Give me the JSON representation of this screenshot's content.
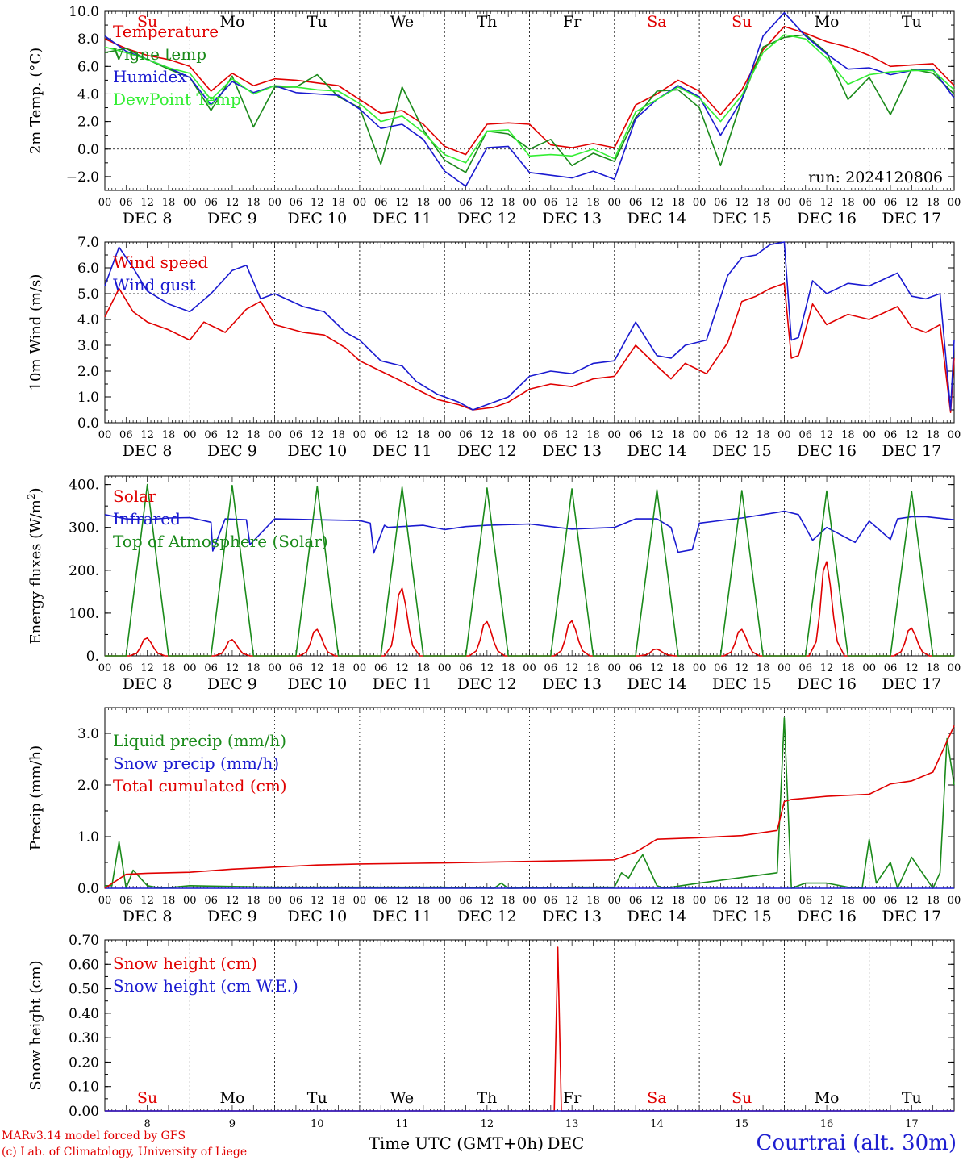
{
  "colors": {
    "red": "#e00000",
    "green": "#1a8a1a",
    "blue": "#1a1ad0",
    "lightgreen": "#33ee33"
  },
  "day_labels": [
    "Su",
    "Mo",
    "Tu",
    "We",
    "Th",
    "Fr",
    "Sa",
    "Su",
    "Mo",
    "Tu"
  ],
  "day_label_colors": [
    "red",
    "black",
    "black",
    "black",
    "black",
    "black",
    "red",
    "red",
    "black",
    "black"
  ],
  "hour_labels": [
    "00",
    "06",
    "12",
    "18"
  ],
  "end_hour_label": "00",
  "date_labels": [
    "DEC  8",
    "DEC  9",
    "DEC 10",
    "DEC 11",
    "DEC 12",
    "DEC 13",
    "DEC 14",
    "DEC 15",
    "DEC 16",
    "DEC 17"
  ],
  "day_numbers": [
    "8",
    "9",
    "10",
    "11",
    "12",
    "13",
    "14",
    "15",
    "16",
    "17"
  ],
  "bottom_axis_label": "Time UTC (GMT+0h)",
  "bottom_month": "DEC",
  "credits": [
    "MARv3.14 model forced by GFS",
    "(c) Lab. of Climatology, University of Liege"
  ],
  "station": "Courtrai (alt. 30m)",
  "chart_data": [
    {
      "type": "line",
      "ylabel": "2m Temp. (°C)",
      "ylim": [
        -3.0,
        10.0
      ],
      "yticks": [
        -2.0,
        0.0,
        2.0,
        4.0,
        6.0,
        8.0,
        10.0
      ],
      "ytick_labels": [
        "−2.0",
        "0.0",
        "2.0",
        "4.0",
        "6.0",
        "8.0",
        "10.0"
      ],
      "xlim_hours": [
        0,
        240
      ],
      "ref_line": 0.0,
      "annotation": "run: 2024120806",
      "series": [
        {
          "name": "Temperature",
          "color": "red",
          "x": [
            0,
            6,
            12,
            18,
            24,
            30,
            36,
            42,
            48,
            54,
            60,
            66,
            72,
            78,
            84,
            90,
            96,
            102,
            108,
            114,
            120,
            126,
            132,
            138,
            144,
            150,
            156,
            162,
            168,
            174,
            180,
            186,
            192,
            198,
            204,
            210,
            216,
            222,
            228,
            234,
            240
          ],
          "y": [
            8.0,
            7.3,
            6.8,
            6.5,
            6.0,
            4.2,
            5.5,
            4.6,
            5.1,
            5.0,
            4.8,
            4.6,
            3.6,
            2.6,
            2.8,
            1.8,
            0.2,
            -0.4,
            1.8,
            1.9,
            1.8,
            0.3,
            0.1,
            0.4,
            0.1,
            3.2,
            4.0,
            5.0,
            4.2,
            2.5,
            4.3,
            7.2,
            8.9,
            8.4,
            7.8,
            7.4,
            6.8,
            6.0,
            6.1,
            6.2,
            4.6
          ]
        },
        {
          "name": "Vigne temp",
          "color": "green",
          "x": [
            0,
            6,
            12,
            18,
            24,
            30,
            36,
            42,
            48,
            54,
            60,
            66,
            72,
            78,
            84,
            90,
            96,
            102,
            108,
            114,
            120,
            126,
            132,
            138,
            144,
            150,
            156,
            162,
            168,
            174,
            180,
            186,
            192,
            198,
            204,
            210,
            216,
            222,
            228,
            234,
            240
          ],
          "y": [
            7.0,
            7.3,
            6.5,
            5.8,
            5.2,
            2.8,
            5.3,
            1.6,
            4.5,
            4.5,
            5.4,
            3.8,
            3.0,
            -1.1,
            4.5,
            1.4,
            -0.8,
            -1.7,
            1.3,
            1.1,
            0.0,
            0.7,
            -1.2,
            -0.3,
            -0.9,
            2.3,
            4.2,
            4.3,
            3.0,
            -1.2,
            3.6,
            7.4,
            8.1,
            8.3,
            7.0,
            3.6,
            5.2,
            2.5,
            5.8,
            5.5,
            4.0
          ]
        },
        {
          "name": "Humidex",
          "color": "blue",
          "x": [
            0,
            6,
            12,
            18,
            24,
            30,
            36,
            42,
            48,
            54,
            60,
            66,
            72,
            78,
            84,
            90,
            96,
            102,
            108,
            114,
            120,
            126,
            132,
            138,
            144,
            150,
            156,
            162,
            168,
            174,
            180,
            186,
            192,
            198,
            204,
            210,
            216,
            222,
            228,
            234,
            240
          ],
          "y": [
            8.2,
            7.1,
            6.5,
            5.9,
            5.2,
            3.2,
            4.9,
            4.1,
            4.6,
            4.1,
            4.0,
            3.9,
            2.9,
            1.5,
            1.8,
            0.7,
            -1.6,
            -2.7,
            0.1,
            0.2,
            -1.7,
            -1.9,
            -2.1,
            -1.6,
            -2.2,
            2.2,
            3.6,
            4.6,
            3.8,
            1.0,
            3.6,
            8.2,
            9.9,
            8.2,
            6.9,
            5.8,
            5.9,
            5.4,
            5.7,
            5.8,
            3.7
          ]
        },
        {
          "name": "DewPoint Temp",
          "color": "lightgreen",
          "x": [
            0,
            6,
            12,
            18,
            24,
            30,
            36,
            42,
            48,
            54,
            60,
            66,
            72,
            78,
            84,
            90,
            96,
            102,
            108,
            114,
            120,
            126,
            132,
            138,
            144,
            150,
            156,
            162,
            168,
            174,
            180,
            186,
            192,
            198,
            204,
            210,
            216,
            222,
            228,
            234,
            240
          ],
          "y": [
            7.4,
            7.0,
            6.5,
            5.9,
            5.5,
            3.6,
            5.1,
            4.0,
            4.6,
            4.5,
            4.3,
            4.2,
            3.3,
            2.0,
            2.4,
            1.2,
            -0.4,
            -1.0,
            1.3,
            1.4,
            -0.5,
            -0.4,
            -0.5,
            0.0,
            -0.7,
            2.7,
            3.6,
            4.5,
            3.7,
            2.0,
            3.9,
            7.0,
            8.3,
            8.0,
            6.6,
            4.7,
            5.4,
            5.6,
            5.7,
            5.7,
            4.3
          ]
        }
      ]
    },
    {
      "type": "line",
      "ylabel": "10m Wind (m/s)",
      "ylim": [
        0.0,
        7.0
      ],
      "yticks": [
        0.0,
        1.0,
        2.0,
        3.0,
        4.0,
        5.0,
        6.0,
        7.0
      ],
      "ytick_labels": [
        "0.0",
        "1.0",
        "2.0",
        "3.0",
        "4.0",
        "5.0",
        "6.0",
        "7.0"
      ],
      "xlim_hours": [
        0,
        240
      ],
      "ref_line": 5.0,
      "series": [
        {
          "name": "Wind speed",
          "color": "red",
          "x": [
            0,
            4,
            8,
            12,
            18,
            24,
            28,
            34,
            40,
            44,
            48,
            56,
            62,
            68,
            72,
            78,
            84,
            88,
            94,
            100,
            104,
            110,
            114,
            120,
            126,
            132,
            138,
            144,
            150,
            156,
            160,
            164,
            170,
            176,
            180,
            184,
            188,
            192,
            194,
            196,
            200,
            204,
            210,
            216,
            224,
            228,
            232,
            236,
            239,
            240
          ],
          "y": [
            4.1,
            5.2,
            4.3,
            3.9,
            3.6,
            3.2,
            3.9,
            3.5,
            4.4,
            4.7,
            3.8,
            3.5,
            3.4,
            2.9,
            2.4,
            2.0,
            1.6,
            1.3,
            0.9,
            0.7,
            0.5,
            0.6,
            0.8,
            1.3,
            1.5,
            1.4,
            1.7,
            1.8,
            3.0,
            2.2,
            1.7,
            2.3,
            1.9,
            3.1,
            4.7,
            4.9,
            5.2,
            5.4,
            2.5,
            2.6,
            4.6,
            3.8,
            4.2,
            4.0,
            4.5,
            3.7,
            3.5,
            3.8,
            0.4,
            2.5
          ]
        },
        {
          "name": "Wind gust",
          "color": "blue",
          "x": [
            0,
            4,
            8,
            12,
            18,
            24,
            30,
            36,
            40,
            44,
            48,
            56,
            62,
            68,
            72,
            78,
            84,
            88,
            94,
            100,
            104,
            110,
            114,
            120,
            126,
            132,
            138,
            144,
            150,
            156,
            160,
            164,
            170,
            176,
            180,
            184,
            188,
            192,
            194,
            196,
            200,
            204,
            210,
            216,
            224,
            228,
            232,
            236,
            239,
            240
          ],
          "y": [
            5.3,
            6.8,
            6.0,
            5.1,
            4.6,
            4.3,
            5.0,
            5.9,
            6.1,
            4.8,
            5.0,
            4.5,
            4.3,
            3.5,
            3.2,
            2.4,
            2.2,
            1.6,
            1.1,
            0.8,
            0.5,
            0.8,
            1.0,
            1.8,
            2.0,
            1.9,
            2.3,
            2.4,
            3.9,
            2.6,
            2.5,
            3.0,
            3.2,
            5.7,
            6.4,
            6.5,
            6.9,
            7.0,
            3.2,
            3.3,
            5.5,
            5.0,
            5.4,
            5.3,
            5.8,
            4.9,
            4.8,
            5.0,
            0.5,
            3.2
          ]
        }
      ]
    },
    {
      "type": "line",
      "ylabel": "Energy fluxes (W/m²)",
      "ylim": [
        0,
        420
      ],
      "yticks": [
        0,
        100,
        200,
        300,
        400
      ],
      "ytick_labels": [
        "0.",
        "100.",
        "200.",
        "300.",
        "400."
      ],
      "xlim_hours": [
        0,
        240
      ],
      "series": [
        {
          "name": "Solar",
          "color": "red",
          "day_peaks": [
            42,
            38,
            62,
            158,
            80,
            82,
            16,
            62,
            220,
            65
          ]
        },
        {
          "name": "Infrared",
          "color": "blue",
          "x": [
            0,
            6,
            12,
            18,
            24,
            30,
            30.5,
            34,
            40,
            41,
            48,
            60,
            72,
            75,
            76,
            79,
            80,
            90,
            96,
            102,
            108,
            120,
            132,
            144,
            150,
            156,
            160,
            162,
            166,
            168,
            180,
            190,
            192,
            196,
            200,
            204,
            212,
            216,
            222,
            224,
            228,
            232,
            240
          ],
          "y": [
            330,
            320,
            318,
            322,
            323,
            312,
            245,
            320,
            318,
            260,
            320,
            318,
            316,
            310,
            240,
            305,
            300,
            305,
            295,
            302,
            305,
            308,
            296,
            300,
            320,
            320,
            300,
            242,
            248,
            310,
            322,
            335,
            338,
            330,
            270,
            300,
            265,
            315,
            272,
            320,
            325,
            325,
            318
          ]
        },
        {
          "name": "Top of Atmosphere (Solar)",
          "color": "green",
          "day_peaks": [
            400,
            398,
            396,
            394,
            392,
            390,
            388,
            386,
            385,
            384
          ]
        }
      ]
    },
    {
      "type": "line",
      "ylabel": "Precip (mm/h)",
      "ylim": [
        0.0,
        3.5
      ],
      "yticks": [
        0.0,
        1.0,
        2.0,
        3.0
      ],
      "ytick_labels": [
        "0.0",
        "1.0",
        "2.0",
        "3.0"
      ],
      "xlim_hours": [
        0,
        240
      ],
      "series": [
        {
          "name": "Liquid precip (mm/h)",
          "color": "green",
          "x": [
            0,
            2,
            4,
            6,
            8,
            10,
            12,
            16,
            24,
            48,
            72,
            96,
            110,
            112,
            114,
            132,
            144,
            146,
            148,
            150,
            152,
            156,
            158,
            160,
            168,
            190,
            192,
            194,
            198,
            204,
            210,
            214,
            216,
            218,
            222,
            224,
            226,
            228,
            234,
            236,
            238,
            240
          ],
          "y": [
            0.05,
            0.05,
            0.9,
            0.0,
            0.35,
            0.2,
            0.05,
            0.0,
            0.05,
            0.02,
            0.02,
            0.02,
            0.0,
            0.1,
            0.0,
            0.02,
            0.02,
            0.3,
            0.2,
            0.45,
            0.65,
            0.05,
            0.0,
            0.02,
            0.1,
            0.3,
            3.3,
            0.0,
            0.1,
            0.1,
            0.02,
            0.0,
            0.95,
            0.1,
            0.5,
            0.0,
            0.3,
            0.6,
            0.0,
            0.3,
            2.9,
            2.0
          ]
        },
        {
          "name": "Snow precip (mm/h)",
          "color": "blue",
          "x": [
            0,
            240
          ],
          "y": [
            0.0,
            0.0
          ]
        },
        {
          "name": "Total cumulated (cm)",
          "color": "red",
          "x": [
            0,
            6,
            12,
            24,
            36,
            48,
            60,
            72,
            96,
            120,
            144,
            150,
            156,
            168,
            180,
            190,
            192,
            194,
            204,
            216,
            222,
            228,
            234,
            240
          ],
          "y": [
            0.0,
            0.27,
            0.29,
            0.31,
            0.37,
            0.41,
            0.45,
            0.47,
            0.49,
            0.52,
            0.55,
            0.7,
            0.95,
            0.98,
            1.02,
            1.12,
            1.68,
            1.72,
            1.78,
            1.82,
            2.02,
            2.08,
            2.25,
            3.15
          ]
        }
      ]
    },
    {
      "type": "line",
      "ylabel": "Snow height (cm)",
      "ylim": [
        0.0,
        0.7
      ],
      "yticks": [
        0.0,
        0.1,
        0.2,
        0.3,
        0.4,
        0.5,
        0.6,
        0.7
      ],
      "ytick_labels": [
        "0.00",
        "0.10",
        "0.20",
        "0.30",
        "0.40",
        "0.50",
        "0.60",
        "0.70"
      ],
      "xlim_hours": [
        0,
        240
      ],
      "series": [
        {
          "name": "Snow height (cm)",
          "color": "red",
          "x": [
            0,
            127,
            128,
            129,
            240
          ],
          "y": [
            0.0,
            0.0,
            0.67,
            0.0,
            0.0
          ]
        },
        {
          "name": "Snow height (cm W.E.)",
          "color": "blue",
          "x": [
            0,
            240
          ],
          "y": [
            0.0,
            0.0
          ]
        }
      ]
    }
  ]
}
